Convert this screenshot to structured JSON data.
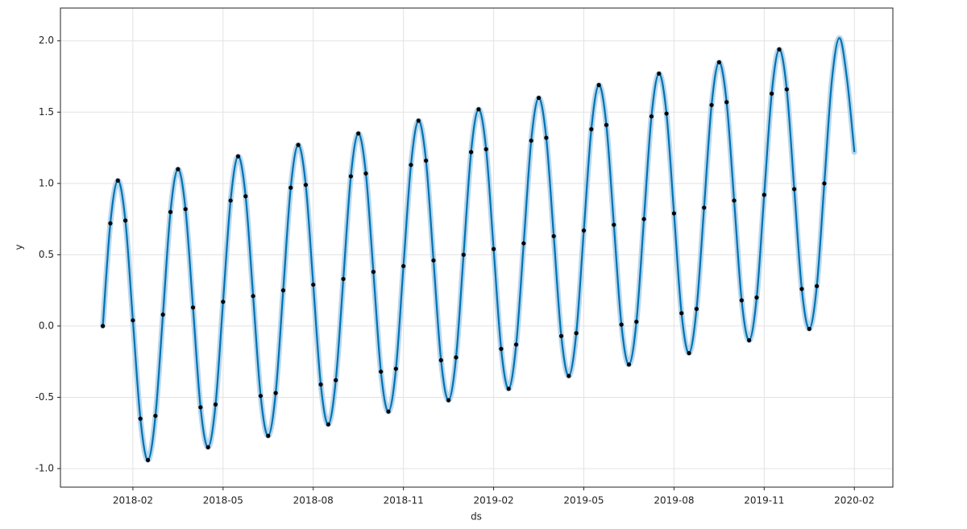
{
  "chart_data": {
    "type": "line",
    "xlabel": "ds",
    "ylabel": "y",
    "grid": true,
    "xlim": [
      -1.41,
      26.28
    ],
    "ylim": [
      -1.13,
      2.23
    ],
    "xticks": [
      {
        "value": 1,
        "label": "2018-02"
      },
      {
        "value": 4,
        "label": "2018-05"
      },
      {
        "value": 7,
        "label": "2018-08"
      },
      {
        "value": 10,
        "label": "2018-11"
      },
      {
        "value": 13,
        "label": "2019-02"
      },
      {
        "value": 16,
        "label": "2019-05"
      },
      {
        "value": 19,
        "label": "2019-08"
      },
      {
        "value": 22,
        "label": "2019-11"
      },
      {
        "value": 25,
        "label": "2020-02"
      }
    ],
    "yticks": [
      {
        "value": -1,
        "label": "-1.0"
      },
      -0.5,
      {
        "value": 0,
        "label": "0.0"
      },
      0.5,
      {
        "value": 1,
        "label": "1.0"
      },
      1.5,
      {
        "value": 2,
        "label": "2.0"
      }
    ],
    "series": [
      {
        "mode": "line",
        "color": "#0072b2",
        "band_color": "#b9d7ec",
        "x": [
          0,
          0.25,
          0.5,
          0.75,
          1,
          1.25,
          1.5,
          1.75,
          2,
          2.25,
          2.5,
          2.75,
          3,
          3.25,
          3.5,
          3.75,
          4,
          4.25,
          4.5,
          4.75,
          5,
          5.25,
          5.5,
          5.75,
          6,
          6.25,
          6.5,
          6.75,
          7,
          7.25,
          7.5,
          7.75,
          8,
          8.25,
          8.5,
          8.75,
          9,
          9.25,
          9.5,
          9.75,
          10,
          10.25,
          10.5,
          10.75,
          11,
          11.25,
          11.5,
          11.75,
          12,
          12.25,
          12.5,
          12.75,
          13,
          13.25,
          13.5,
          13.75,
          14,
          14.25,
          14.5,
          14.75,
          15,
          15.25,
          15.5,
          15.75,
          16,
          16.25,
          16.5,
          16.75,
          17,
          17.25,
          17.5,
          17.75,
          18,
          18.25,
          18.5,
          18.75,
          19,
          19.25,
          19.5,
          19.75,
          20,
          20.25,
          20.5,
          20.75,
          21,
          21.25,
          21.5,
          21.75,
          22,
          22.25,
          22.5,
          22.75,
          23,
          23.25,
          23.5,
          23.75,
          24,
          24.25,
          24.5,
          24.75,
          25
        ],
        "values": [
          0,
          0.72,
          1.02,
          0.74,
          0.04,
          -0.65,
          -0.94,
          -0.63,
          0.08,
          0.8,
          1.1,
          0.82,
          0.13,
          -0.57,
          -0.85,
          -0.55,
          0.17,
          0.88,
          1.19,
          0.91,
          0.21,
          -0.49,
          -0.77,
          -0.47,
          0.25,
          0.97,
          1.27,
          0.99,
          0.29,
          -0.41,
          -0.69,
          -0.38,
          0.33,
          1.05,
          1.35,
          1.07,
          0.38,
          -0.32,
          -0.6,
          -0.3,
          0.42,
          1.13,
          1.44,
          1.16,
          0.46,
          -0.24,
          -0.52,
          -0.22,
          0.5,
          1.22,
          1.52,
          1.24,
          0.54,
          -0.16,
          -0.44,
          -0.13,
          0.58,
          1.3,
          1.6,
          1.32,
          0.63,
          -0.07,
          -0.35,
          -0.05,
          0.67,
          1.38,
          1.69,
          1.41,
          0.71,
          0.01,
          -0.27,
          0.03,
          0.75,
          1.47,
          1.77,
          1.49,
          0.79,
          0.09,
          -0.19,
          0.12,
          0.83,
          1.55,
          1.85,
          1.57,
          0.88,
          0.18,
          -0.1,
          0.2,
          0.92,
          1.63,
          1.94,
          1.66,
          0.96,
          0.26,
          -0.02,
          0.28,
          1,
          1.72,
          2.02,
          1.74,
          1.22
        ]
      },
      {
        "mode": "markers",
        "color": "#000000",
        "x": [
          0,
          0.25,
          0.5,
          0.75,
          1,
          1.25,
          1.5,
          1.75,
          2,
          2.25,
          2.5,
          2.75,
          3,
          3.25,
          3.5,
          3.75,
          4,
          4.25,
          4.5,
          4.75,
          5,
          5.25,
          5.5,
          5.75,
          6,
          6.25,
          6.5,
          6.75,
          7,
          7.25,
          7.5,
          7.75,
          8,
          8.25,
          8.5,
          8.75,
          9,
          9.25,
          9.5,
          9.75,
          10,
          10.25,
          10.5,
          10.75,
          11,
          11.25,
          11.5,
          11.75,
          12,
          12.25,
          12.5,
          12.75,
          13,
          13.25,
          13.5,
          13.75,
          14,
          14.25,
          14.5,
          14.75,
          15,
          15.25,
          15.5,
          15.75,
          16,
          16.25,
          16.5,
          16.75,
          17,
          17.25,
          17.5,
          17.75,
          18,
          18.25,
          18.5,
          18.75,
          19,
          19.25,
          19.5,
          19.75,
          20,
          20.25,
          20.5,
          20.75,
          21,
          21.25,
          21.5,
          21.75,
          22,
          22.25,
          22.5,
          22.75,
          23,
          23.25,
          23.5,
          23.75,
          24
        ],
        "values": [
          0,
          0.72,
          1.02,
          0.74,
          0.04,
          -0.65,
          -0.94,
          -0.63,
          0.08,
          0.8,
          1.1,
          0.82,
          0.13,
          -0.57,
          -0.85,
          -0.55,
          0.17,
          0.88,
          1.19,
          0.91,
          0.21,
          -0.49,
          -0.77,
          -0.47,
          0.25,
          0.97,
          1.27,
          0.99,
          0.29,
          -0.41,
          -0.69,
          -0.38,
          0.33,
          1.05,
          1.35,
          1.07,
          0.38,
          -0.32,
          -0.6,
          -0.3,
          0.42,
          1.13,
          1.44,
          1.16,
          0.46,
          -0.24,
          -0.52,
          -0.22,
          0.5,
          1.22,
          1.52,
          1.24,
          0.54,
          -0.16,
          -0.44,
          -0.13,
          0.58,
          1.3,
          1.6,
          1.32,
          0.63,
          -0.07,
          -0.35,
          -0.05,
          0.67,
          1.38,
          1.69,
          1.41,
          0.71,
          0.01,
          -0.27,
          0.03,
          0.75,
          1.47,
          1.77,
          1.49,
          0.79,
          0.09,
          -0.19,
          0.12,
          0.83,
          1.55,
          1.85,
          1.57,
          0.88,
          0.18,
          -0.1,
          0.2,
          0.92,
          1.63,
          1.94,
          1.66,
          0.96,
          0.26,
          -0.02,
          0.28,
          1
        ]
      }
    ]
  }
}
